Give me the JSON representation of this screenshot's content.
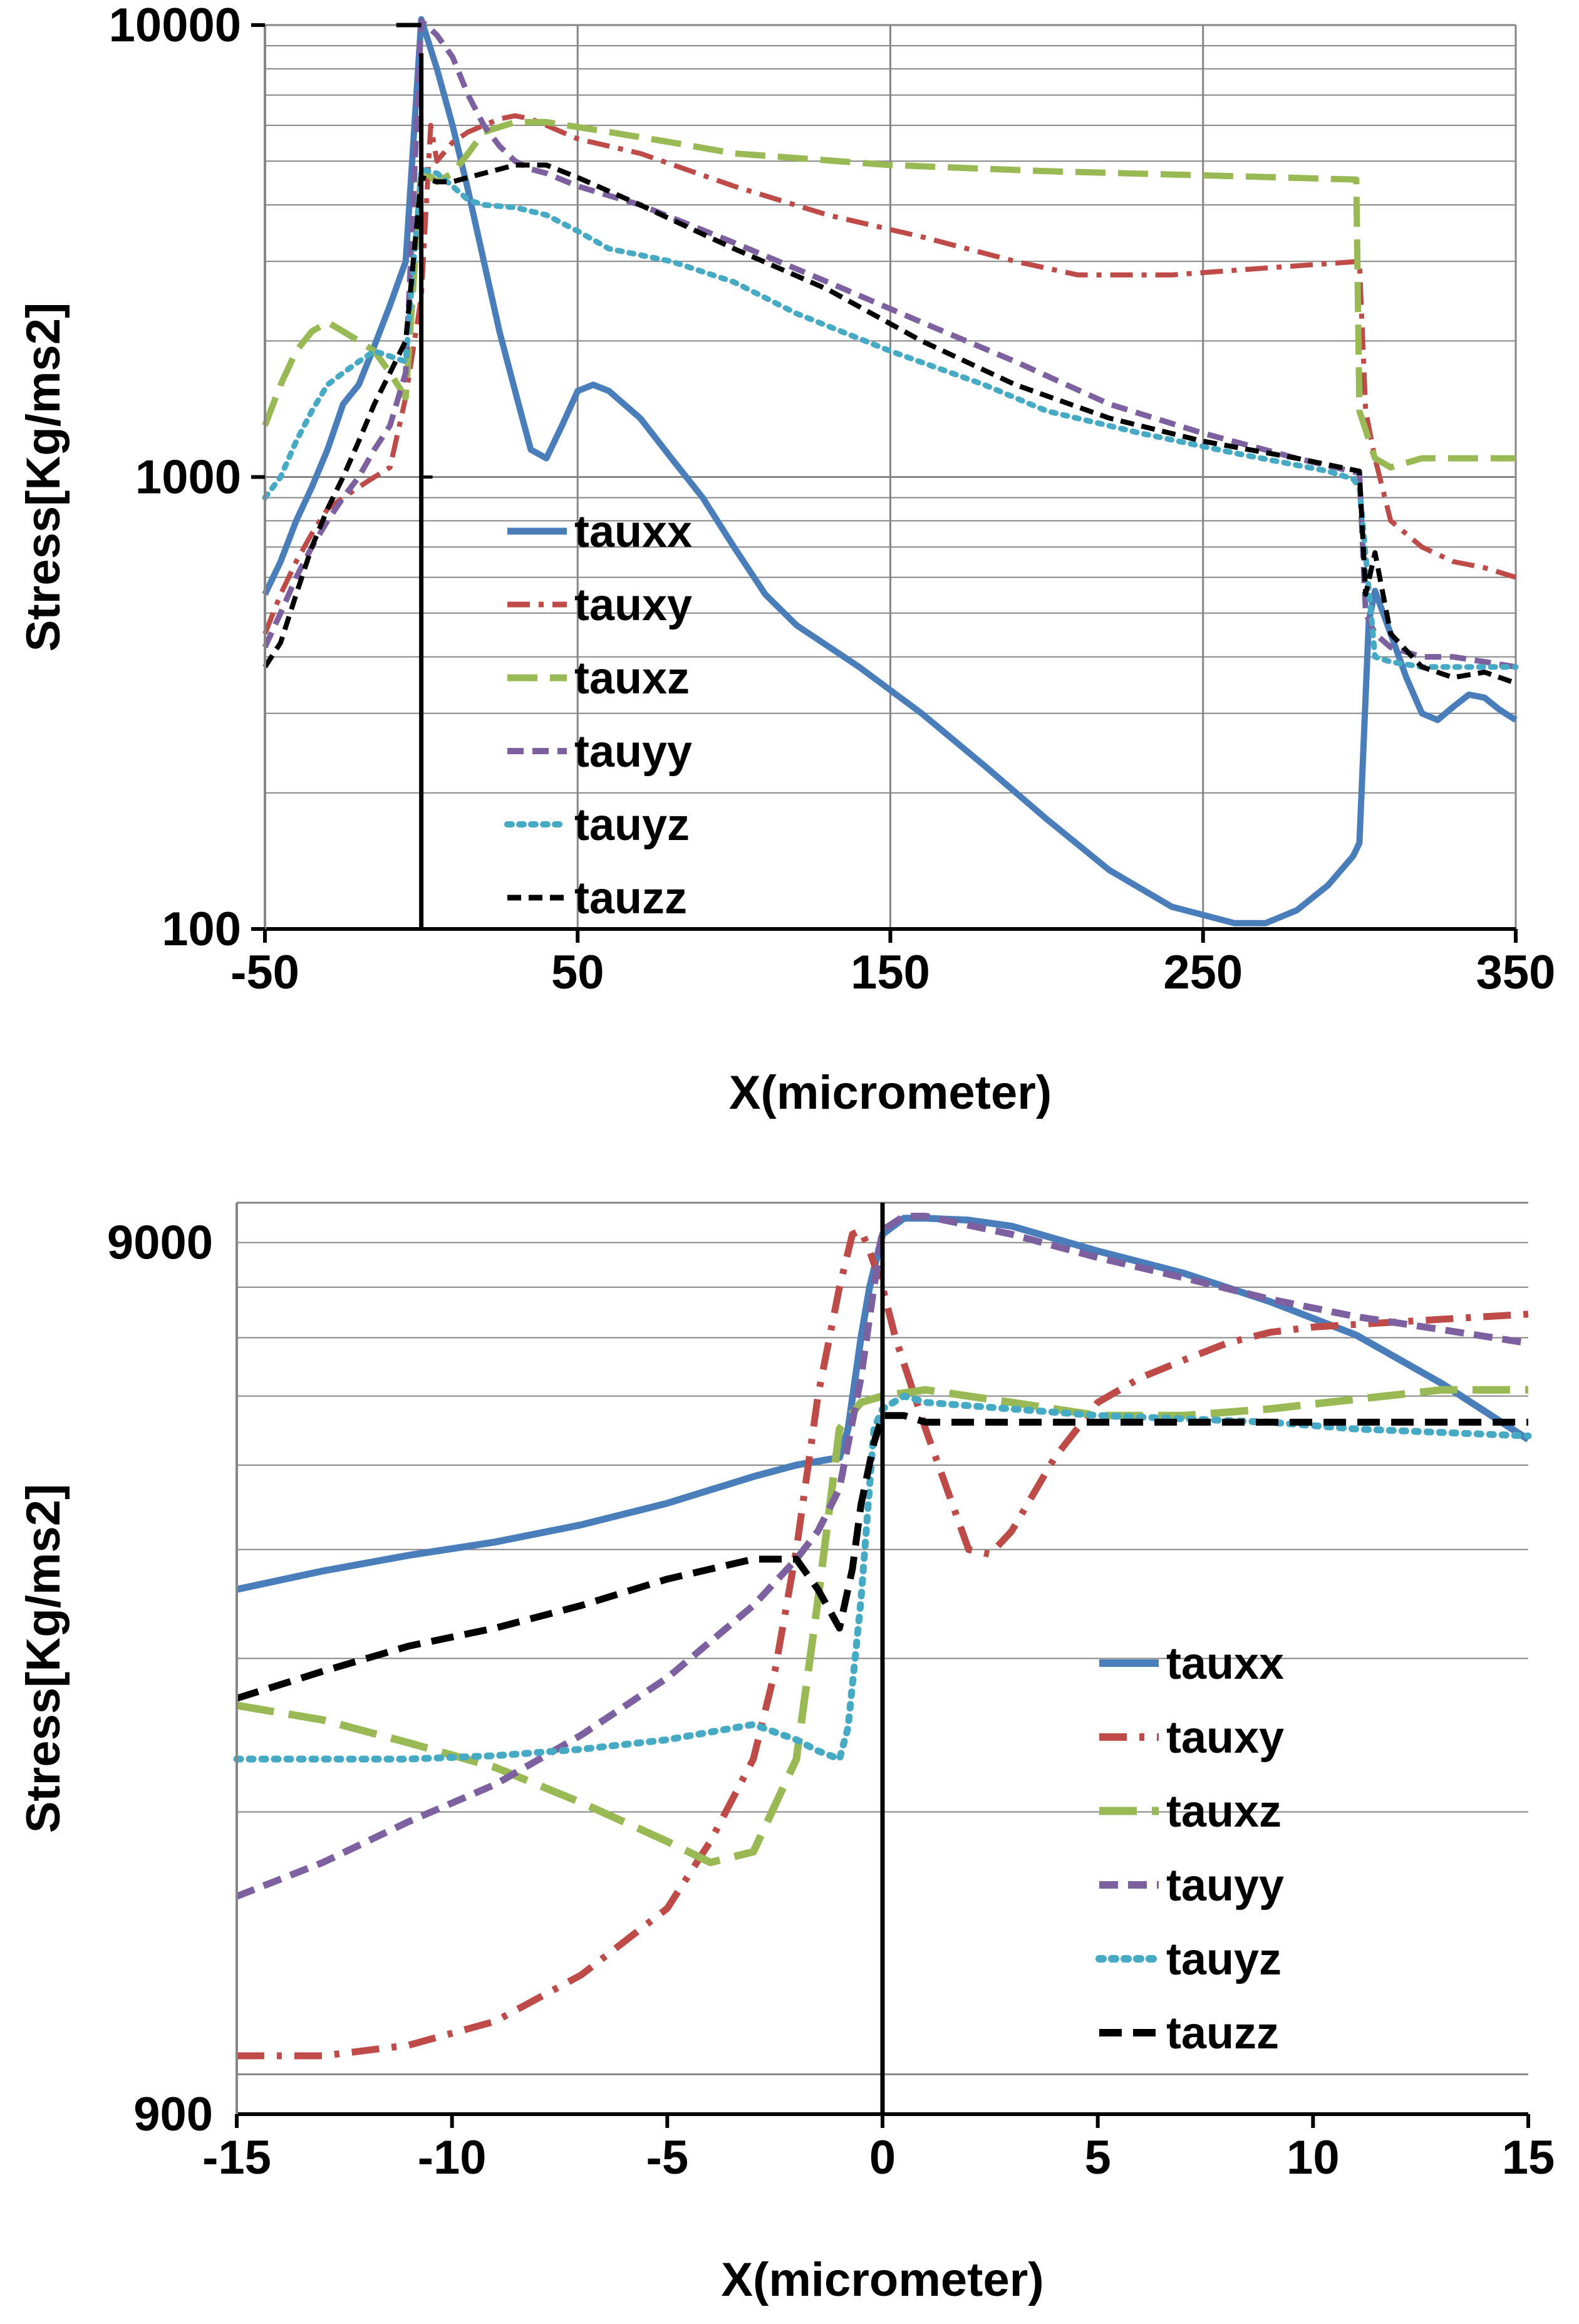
{
  "colors": {
    "tauxx": "#4a7ebb",
    "tauxy": "#be4b48",
    "tauxz": "#98b954",
    "tauyy": "#7d60a0",
    "tauyz": "#46aac5",
    "tauzz": "#000000",
    "grid": "#868686",
    "axis": "#000000"
  },
  "chart_data": [
    {
      "type": "line",
      "scale_y": "log",
      "title": "",
      "xlabel": "X(micrometer)",
      "ylabel": "Stress[Kg/ms2]",
      "xlim": [
        -50,
        350
      ],
      "ylim": [
        100,
        10000
      ],
      "x_ticks": [
        -50,
        50,
        150,
        250,
        350
      ],
      "x_tick_labels": [
        "-50",
        "50",
        "150",
        "250",
        "350"
      ],
      "y_ticks": [
        100,
        1000,
        10000
      ],
      "y_tick_labels": [
        "100",
        "1000",
        "10000"
      ],
      "vertical_line_x": 0,
      "legend_position": "center-left",
      "series": [
        {
          "name": "tauxx",
          "x": [
            -50,
            -45,
            -40,
            -35,
            -30,
            -25,
            -20,
            -15,
            -10,
            -5,
            0,
            5,
            10,
            15,
            20,
            25,
            30,
            35,
            40,
            45,
            50,
            55,
            60,
            70,
            80,
            90,
            100,
            110,
            120,
            140,
            160,
            180,
            200,
            220,
            240,
            260,
            270,
            280,
            290,
            298,
            300,
            303,
            305,
            310,
            315,
            320,
            325,
            330,
            335,
            340,
            345,
            350
          ],
          "y": [
            550,
            650,
            800,
            950,
            1150,
            1450,
            1600,
            1950,
            2400,
            3000,
            10300,
            8000,
            6000,
            4300,
            3000,
            2100,
            1550,
            1150,
            1100,
            1300,
            1550,
            1600,
            1550,
            1350,
            1100,
            900,
            700,
            550,
            470,
            380,
            300,
            230,
            175,
            135,
            112,
            103,
            103,
            110,
            125,
            145,
            155,
            480,
            560,
            450,
            360,
            300,
            290,
            310,
            330,
            325,
            305,
            290
          ]
        },
        {
          "name": "tauxy",
          "x": [
            -50,
            -45,
            -40,
            -35,
            -30,
            -25,
            -20,
            -15,
            -10,
            -5,
            0,
            3,
            5,
            10,
            15,
            20,
            25,
            30,
            35,
            40,
            50,
            70,
            100,
            130,
            160,
            190,
            210,
            240,
            270,
            300,
            302,
            305,
            310,
            320,
            330,
            340,
            350
          ],
          "y": [
            450,
            550,
            650,
            750,
            850,
            900,
            950,
            1000,
            1050,
            1500,
            2500,
            6000,
            5000,
            5500,
            5800,
            6000,
            6200,
            6300,
            6200,
            6000,
            5600,
            5200,
            4400,
            3800,
            3400,
            3000,
            2800,
            2800,
            2900,
            3000,
            1400,
            1100,
            800,
            700,
            650,
            630,
            600
          ]
        },
        {
          "name": "tauxz",
          "x": [
            -50,
            -45,
            -40,
            -35,
            -30,
            -25,
            -20,
            -15,
            -10,
            -5,
            0,
            5,
            10,
            15,
            20,
            30,
            40,
            60,
            80,
            100,
            150,
            200,
            250,
            299,
            300,
            305,
            310,
            320,
            330,
            340,
            350
          ],
          "y": [
            1300,
            1600,
            1900,
            2100,
            2200,
            2100,
            2000,
            1900,
            1700,
            1500,
            4800,
            4500,
            4700,
            5200,
            5800,
            6100,
            6100,
            5800,
            5500,
            5200,
            4900,
            4750,
            4650,
            4550,
            1400,
            1100,
            1050,
            1100,
            1100,
            1100,
            1100
          ]
        },
        {
          "name": "tauyy",
          "x": [
            -50,
            -45,
            -40,
            -35,
            -30,
            -25,
            -20,
            -15,
            -10,
            -5,
            0,
            3,
            5,
            10,
            15,
            20,
            25,
            30,
            35,
            40,
            50,
            70,
            100,
            130,
            160,
            190,
            220,
            250,
            280,
            300,
            302,
            305,
            310,
            320,
            330,
            340,
            350
          ],
          "y": [
            420,
            500,
            600,
            700,
            800,
            900,
            1000,
            1150,
            1300,
            1700,
            10200,
            9800,
            9500,
            8500,
            7000,
            6000,
            5400,
            5000,
            4800,
            4700,
            4400,
            4000,
            3300,
            2700,
            2200,
            1800,
            1450,
            1250,
            1100,
            1020,
            500,
            450,
            420,
            400,
            400,
            390,
            380
          ]
        },
        {
          "name": "tauyz",
          "x": [
            -50,
            -45,
            -40,
            -35,
            -30,
            -25,
            -20,
            -15,
            -10,
            -5,
            0,
            5,
            10,
            15,
            20,
            30,
            40,
            50,
            60,
            80,
            100,
            120,
            150,
            180,
            200,
            230,
            260,
            290,
            298,
            300,
            305,
            310,
            320,
            330,
            340,
            350
          ],
          "y": [
            900,
            1000,
            1200,
            1400,
            1600,
            1700,
            1800,
            1900,
            1850,
            1800,
            4800,
            4700,
            4400,
            4100,
            4000,
            3950,
            3800,
            3500,
            3200,
            3000,
            2700,
            2300,
            1900,
            1600,
            1400,
            1250,
            1130,
            1030,
            990,
            950,
            400,
            390,
            380,
            380,
            380,
            380
          ]
        },
        {
          "name": "tauzz",
          "x": [
            -50,
            -45,
            -40,
            -35,
            -30,
            -25,
            -20,
            -15,
            -10,
            -5,
            0,
            5,
            10,
            15,
            20,
            30,
            40,
            50,
            70,
            100,
            130,
            160,
            190,
            220,
            250,
            280,
            300,
            302,
            305,
            310,
            320,
            330,
            340,
            350
          ],
          "y": [
            380,
            430,
            550,
            700,
            850,
            1000,
            1200,
            1450,
            1700,
            2000,
            4600,
            4500,
            4500,
            4600,
            4700,
            4900,
            4900,
            4600,
            4000,
            3200,
            2600,
            2000,
            1600,
            1350,
            1200,
            1100,
            1030,
            550,
            680,
            450,
            380,
            360,
            370,
            350
          ]
        }
      ]
    },
    {
      "type": "line",
      "scale_y": "log",
      "title": "",
      "xlabel": "X(micrometer)",
      "ylabel": "Stress[Kg/ms2]",
      "xlim": [
        -15,
        15
      ],
      "ylim": [
        900,
        10000
      ],
      "x_ticks": [
        -15,
        -10,
        -5,
        0,
        5,
        10,
        15
      ],
      "x_tick_labels": [
        "-15",
        "-10",
        "-5",
        "0",
        "5",
        "10",
        "15"
      ],
      "y_ticks": [
        900,
        9000
      ],
      "y_tick_labels": [
        "900",
        "9000"
      ],
      "vertical_line_x": 0,
      "legend_position": "bottom-right",
      "series": [
        {
          "name": "tauxx",
          "x": [
            -15,
            -13,
            -11,
            -9,
            -7,
            -5,
            -3,
            -2,
            -1.5,
            -1,
            -0.8,
            -0.5,
            -0.3,
            0,
            0.5,
            1,
            2,
            3,
            5,
            7,
            9,
            11,
            13,
            15
          ],
          "y": [
            3600,
            3780,
            3940,
            4080,
            4270,
            4520,
            4850,
            5000,
            5050,
            5100,
            5500,
            7000,
            8000,
            9200,
            9600,
            9600,
            9550,
            9400,
            8800,
            8300,
            7700,
            7050,
            6200,
            5350
          ]
        },
        {
          "name": "tauxy",
          "x": [
            -15,
            -13,
            -11,
            -9,
            -7,
            -5,
            -4,
            -3,
            -2.5,
            -2,
            -1.5,
            -1,
            -0.7,
            -0.5,
            -0.3,
            0,
            0.3,
            1,
            2,
            2.5,
            3,
            4,
            5,
            6,
            7,
            8,
            9,
            10,
            11,
            12,
            13,
            14,
            15
          ],
          "y": [
            1050,
            1050,
            1080,
            1150,
            1300,
            1550,
            1850,
            2300,
            2900,
            4000,
            6000,
            8000,
            9200,
            9300,
            8800,
            8000,
            7000,
            5500,
            4000,
            3950,
            4200,
            5100,
            5900,
            6300,
            6600,
            6900,
            7100,
            7200,
            7250,
            7300,
            7350,
            7400,
            7450
          ]
        },
        {
          "name": "tauxz",
          "x": [
            -15,
            -13,
            -11,
            -9,
            -7,
            -5,
            -4,
            -3,
            -2,
            -1.5,
            -1,
            -0.5,
            0,
            1,
            3,
            5,
            7,
            9,
            11,
            13,
            15
          ],
          "y": [
            2650,
            2550,
            2400,
            2250,
            2050,
            1850,
            1750,
            1800,
            2300,
            3500,
            5500,
            5900,
            6000,
            6100,
            5900,
            5700,
            5700,
            5800,
            5950,
            6100,
            6100
          ]
        },
        {
          "name": "tauyy",
          "x": [
            -15,
            -13,
            -11,
            -9,
            -7,
            -5,
            -3,
            -2,
            -1.5,
            -1,
            -0.5,
            -0.2,
            0,
            0.5,
            1,
            3,
            5,
            7,
            9,
            11,
            13,
            15
          ],
          "y": [
            1600,
            1750,
            1950,
            2150,
            2450,
            2850,
            3450,
            3900,
            4200,
            4700,
            6300,
            8000,
            9300,
            9650,
            9650,
            9200,
            8650,
            8200,
            7750,
            7400,
            7150,
            6900
          ]
        },
        {
          "name": "tauyz",
          "x": [
            -15,
            -13,
            -11,
            -9,
            -7,
            -5,
            -3,
            -2,
            -1.5,
            -1,
            -0.8,
            -0.5,
            -0.2,
            0,
            0.5,
            1,
            3,
            5,
            7,
            9,
            11,
            13,
            15
          ],
          "y": [
            2300,
            2300,
            2300,
            2320,
            2360,
            2420,
            2520,
            2420,
            2350,
            2300,
            2500,
            3500,
            5500,
            5800,
            6000,
            5900,
            5800,
            5700,
            5650,
            5600,
            5500,
            5450,
            5400
          ]
        },
        {
          "name": "tauzz",
          "x": [
            -15,
            -13,
            -11,
            -9,
            -7,
            -5,
            -3,
            -2,
            -1.5,
            -1,
            -0.7,
            -0.5,
            -0.2,
            0,
            0.5,
            1,
            3,
            5,
            7,
            9,
            11,
            13,
            15
          ],
          "y": [
            2700,
            2900,
            3100,
            3250,
            3450,
            3700,
            3900,
            3900,
            3600,
            3250,
            3800,
            4500,
            5300,
            5700,
            5700,
            5600,
            5600,
            5600,
            5600,
            5600,
            5600,
            5600,
            5600
          ]
        }
      ]
    }
  ]
}
